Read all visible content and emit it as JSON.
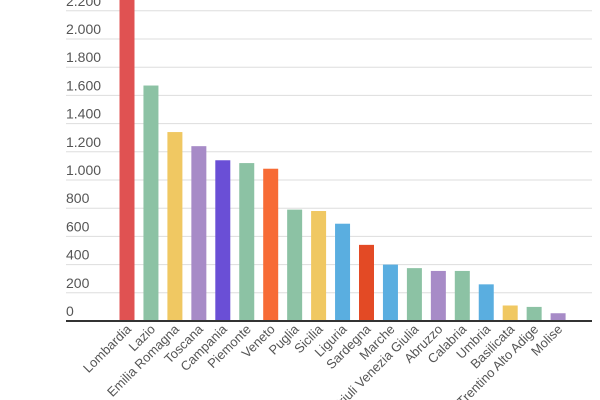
{
  "chart_data": {
    "type": "bar",
    "title": "",
    "xlabel": "",
    "ylabel": "",
    "ylim": [
      0,
      2270
    ],
    "grid": true,
    "yticks": [
      0,
      200,
      400,
      600,
      800,
      1000,
      1200,
      1400,
      1600,
      1800,
      2000,
      2200
    ],
    "ytick_labels": [
      "0",
      "200",
      "400",
      "600",
      "800",
      "1.000",
      "1.200",
      "1.400",
      "1.600",
      "1.800",
      "2.000",
      "2.200"
    ],
    "categories": [
      "Lombardia",
      "Lazio",
      "Emilia Romagna",
      "Toscana",
      "Campania",
      "Piemonte",
      "Veneto",
      "Puglia",
      "Sicilia",
      "Liguria",
      "Sardegna",
      "Marche",
      "Friuli Venezia Giulia",
      "Abruzzo",
      "Calabria",
      "Umbria",
      "Basilicata",
      "Trentino Alto Adige",
      "Molise"
    ],
    "values": [
      2300,
      1670,
      1340,
      1240,
      1140,
      1120,
      1080,
      790,
      780,
      690,
      540,
      400,
      375,
      355,
      355,
      260,
      110,
      100,
      55
    ],
    "colors": [
      "#e05252",
      "#8cc2a4",
      "#f0c862",
      "#a78bc7",
      "#6a4fd6",
      "#8cc2a4",
      "#f76b35",
      "#8cc2a4",
      "#f0c862",
      "#5aaee0",
      "#e34a25",
      "#5aaee0",
      "#8cc2a4",
      "#a78bc7",
      "#8cc2a4",
      "#5aaee0",
      "#f0c862",
      "#8cc2a4",
      "#a78bc7"
    ]
  }
}
